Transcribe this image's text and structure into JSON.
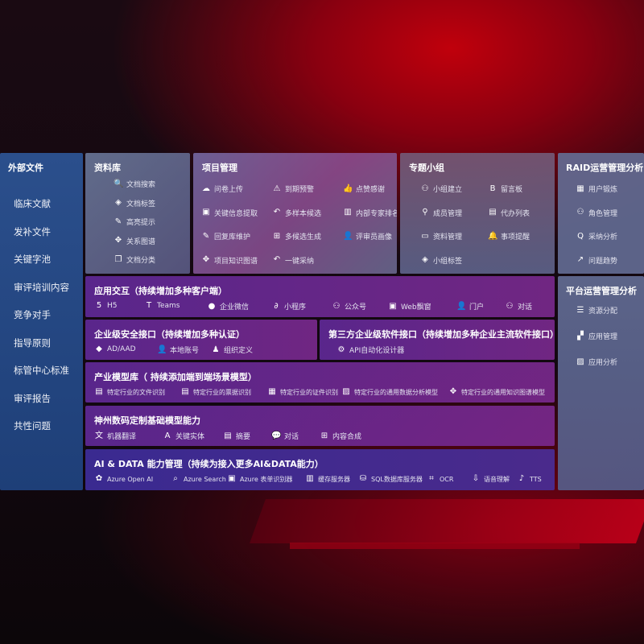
{
  "left": {
    "title": "外部文件",
    "items": [
      "临床文献",
      "发补文件",
      "关键字池",
      "审评培训内容",
      "竞争对手",
      "指导原则",
      "标管中心标准",
      "审评报告",
      "共性问题"
    ]
  },
  "library": {
    "title": "资料库",
    "items": [
      {
        "label": "文档搜索",
        "icon": "doc-search-icon"
      },
      {
        "label": "文档标签",
        "icon": "tag-icon"
      },
      {
        "label": "高亮提示",
        "icon": "pen-icon"
      },
      {
        "label": "关系图谱",
        "icon": "graph-icon"
      },
      {
        "label": "文档分类",
        "icon": "doc-copy-icon"
      }
    ]
  },
  "project": {
    "title": "项目管理",
    "items": [
      {
        "label": "问卷上传",
        "icon": "cloud-upload-icon"
      },
      {
        "label": "到期预警",
        "icon": "alarm-icon"
      },
      {
        "label": "点赞感谢",
        "icon": "thumbs-up-icon"
      },
      {
        "label": "关键信息提取",
        "icon": "window-icon"
      },
      {
        "label": "多样本候选",
        "icon": "reply-icon"
      },
      {
        "label": "内部专家排名",
        "icon": "ranking-icon"
      },
      {
        "label": "回复库维护",
        "icon": "edit-icon"
      },
      {
        "label": "多候选生成",
        "icon": "puzzle-icon"
      },
      {
        "label": "评审员画像",
        "icon": "user-icon"
      },
      {
        "label": "项目知识图谱",
        "icon": "graph-icon"
      },
      {
        "label": "一键采纳",
        "icon": "reply-icon"
      }
    ]
  },
  "topic": {
    "title": "专题小组",
    "items": [
      {
        "label": "小组建立",
        "icon": "group-icon"
      },
      {
        "label": "留言板",
        "icon": "bbs-icon"
      },
      {
        "label": "成员管理",
        "icon": "user-add-icon"
      },
      {
        "label": "代办列表",
        "icon": "clipboard-icon"
      },
      {
        "label": "资料管理",
        "icon": "folder-icon"
      },
      {
        "label": "事项提醒",
        "icon": "bell-icon"
      },
      {
        "label": "小组标签",
        "icon": "tag-icon"
      }
    ]
  },
  "raid": {
    "title": "RAID运营管理分析",
    "items": [
      {
        "label": "用户锻炼",
        "icon": "id-card-icon"
      },
      {
        "label": "角色管理",
        "icon": "group-icon"
      },
      {
        "label": "采纳分析",
        "icon": "qa-icon"
      },
      {
        "label": "问题趋势",
        "icon": "trend-icon"
      }
    ]
  },
  "platform": {
    "title": "平台运营管理分析",
    "items": [
      {
        "label": "资源分配",
        "icon": "list-icon"
      },
      {
        "label": "应用管理",
        "icon": "apps-icon"
      },
      {
        "label": "应用分析",
        "icon": "chart-icon"
      }
    ]
  },
  "app": {
    "title": "应用交互（持续增加多种客户端）",
    "items": [
      {
        "label": "H5",
        "icon": "html5-icon"
      },
      {
        "label": "Teams",
        "icon": "teams-icon"
      },
      {
        "label": "企业微信",
        "icon": "wecom-icon"
      },
      {
        "label": "小程序",
        "icon": "miniprogram-icon"
      },
      {
        "label": "公众号",
        "icon": "group-icon"
      },
      {
        "label": "Web飘窗",
        "icon": "window-icon"
      },
      {
        "label": "门户",
        "icon": "portal-icon"
      },
      {
        "label": "对话",
        "icon": "chat-users-icon"
      }
    ]
  },
  "security": {
    "title": "企业级安全接口（持续增加多种认证）",
    "items": [
      {
        "label": "AD/AAD",
        "icon": "ad-icon"
      },
      {
        "label": "本地账号",
        "icon": "user-lock-icon"
      },
      {
        "label": "组织定义",
        "icon": "org-icon"
      }
    ]
  },
  "thirdparty": {
    "title": "第三方企业级软件接口（持续增加多种企业主流软件接口）",
    "items": [
      {
        "label": "API自动化设计器",
        "icon": "gear-icon"
      }
    ]
  },
  "industry": {
    "title": "产业模型库（ 持续添加端到端场景模型）",
    "items": [
      {
        "label": "特定行业的文件识别",
        "icon": "doc-icon"
      },
      {
        "label": "特定行业的票据识别",
        "icon": "receipt-icon"
      },
      {
        "label": "特定行业的证件识别",
        "icon": "id-card-icon"
      },
      {
        "label": "特定行业的通用数据分析模型",
        "icon": "chart-icon"
      },
      {
        "label": "特定行业的通用知识图谱模型",
        "icon": "graph-icon"
      }
    ]
  },
  "base": {
    "title": "神州数码定制基础模型能力",
    "items": [
      {
        "label": "机器翻译",
        "icon": "translate-icon"
      },
      {
        "label": "关键实体",
        "icon": "entity-icon"
      },
      {
        "label": "摘要",
        "icon": "doc-icon"
      },
      {
        "label": "对话",
        "icon": "chat-icon"
      },
      {
        "label": "内容合成",
        "icon": "puzzle-icon"
      }
    ]
  },
  "ai": {
    "title": "AI & DATA 能力管理（持续为接入更多AI&DATA能力）",
    "items": [
      {
        "label": "Azure Open AI",
        "icon": "openai-icon"
      },
      {
        "label": "Azure Search",
        "icon": "search-icon"
      },
      {
        "label": "Azure 表单识别器",
        "icon": "form-icon"
      },
      {
        "label": "缓存服务器",
        "icon": "cache-icon"
      },
      {
        "label": "SQL数据库服务器",
        "icon": "database-icon"
      },
      {
        "label": "OCR",
        "icon": "ocr-icon"
      },
      {
        "label": "语音理解",
        "icon": "voice-icon"
      },
      {
        "label": "TTS",
        "icon": "tts-icon"
      }
    ]
  }
}
